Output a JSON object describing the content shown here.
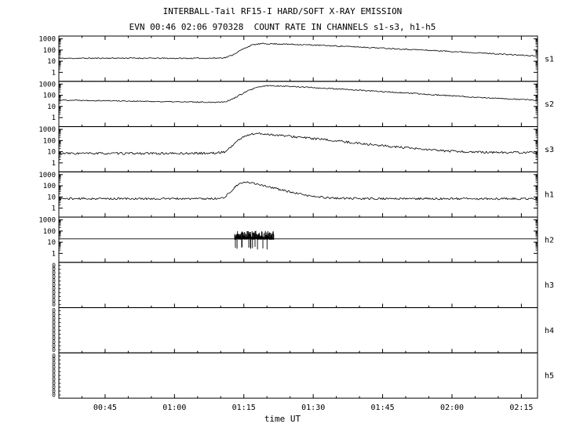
{
  "title": "INTERBALL-Tail RF15-I HARD/SOFT X-RAY EMISSION",
  "subtitle": "EVN 00:46 02:06 970328  COUNT RATE IN CHANNELS s1-s3, h1-h5",
  "chart_data": {
    "type": "line",
    "x_label": "time UT",
    "x_axis": "time of day (minutes after 00:00 UT)",
    "x_range_minutes": [
      35,
      138.5
    ],
    "x_ticks": [
      {
        "minute": 45,
        "label": "00:45"
      },
      {
        "minute": 60,
        "label": "01:00"
      },
      {
        "minute": 75,
        "label": "01:15"
      },
      {
        "minute": 90,
        "label": "01:30"
      },
      {
        "minute": 105,
        "label": "01:45"
      },
      {
        "minute": 120,
        "label": "02:00"
      },
      {
        "minute": 135,
        "label": "02:15"
      }
    ],
    "x_minor_tick_step_minutes": 5,
    "y_log_ticks": [
      {
        "value": 1000,
        "label": "1000"
      },
      {
        "value": 100,
        "label": "100"
      },
      {
        "value": 10,
        "label": "10"
      },
      {
        "value": 1,
        "label": "1"
      }
    ],
    "y_log_range_exp": [
      -0.8,
      3.25
    ],
    "empty_axis_char": "0",
    "empty_axis_repeat": 11,
    "panels": [
      {
        "id": "s1",
        "label": "s1",
        "axis": "log",
        "noise": 0.05,
        "seed": 11,
        "keypoints_time_value": [
          [
            35,
            18
          ],
          [
            50,
            19
          ],
          [
            62,
            18
          ],
          [
            69,
            19
          ],
          [
            71,
            21
          ],
          [
            72.5,
            35
          ],
          [
            74,
            80
          ],
          [
            75.5,
            170
          ],
          [
            77,
            300
          ],
          [
            79,
            370
          ],
          [
            82,
            355
          ],
          [
            88,
            300
          ],
          [
            95,
            230
          ],
          [
            102,
            170
          ],
          [
            110,
            118
          ],
          [
            118,
            82
          ],
          [
            126,
            55
          ],
          [
            132,
            40
          ],
          [
            138.5,
            29
          ]
        ]
      },
      {
        "id": "s2",
        "label": "s2",
        "axis": "log",
        "noise": 0.05,
        "seed": 22,
        "keypoints_time_value": [
          [
            35,
            38
          ],
          [
            45,
            33
          ],
          [
            55,
            28
          ],
          [
            63,
            25
          ],
          [
            69,
            24
          ],
          [
            71,
            27
          ],
          [
            72.5,
            45
          ],
          [
            74,
            100
          ],
          [
            76,
            260
          ],
          [
            78,
            520
          ],
          [
            80,
            720
          ],
          [
            83,
            680
          ],
          [
            88,
            540
          ],
          [
            95,
            370
          ],
          [
            102,
            250
          ],
          [
            110,
            160
          ],
          [
            118,
            100
          ],
          [
            126,
            64
          ],
          [
            132,
            47
          ],
          [
            138.5,
            36
          ]
        ]
      },
      {
        "id": "s3",
        "label": "s3",
        "axis": "log",
        "noise": 0.1,
        "seed": 33,
        "keypoints_time_value": [
          [
            35,
            7
          ],
          [
            50,
            7
          ],
          [
            62,
            7
          ],
          [
            69,
            7.5
          ],
          [
            71,
            10
          ],
          [
            72.5,
            35
          ],
          [
            74,
            130
          ],
          [
            76,
            330
          ],
          [
            77.5,
            420
          ],
          [
            80,
            370
          ],
          [
            84,
            260
          ],
          [
            90,
            150
          ],
          [
            97,
            75
          ],
          [
            104,
            38
          ],
          [
            111,
            20
          ],
          [
            118,
            12
          ],
          [
            125,
            9
          ],
          [
            138.5,
            8
          ]
        ]
      },
      {
        "id": "h1",
        "label": "h1",
        "axis": "log",
        "noise": 0.09,
        "seed": 44,
        "keypoints_time_value": [
          [
            35,
            7
          ],
          [
            55,
            7
          ],
          [
            68,
            7
          ],
          [
            70.5,
            8
          ],
          [
            72,
            25
          ],
          [
            73.5,
            110
          ],
          [
            75,
            200
          ],
          [
            76.5,
            190
          ],
          [
            78.5,
            130
          ],
          [
            81,
            70
          ],
          [
            84,
            35
          ],
          [
            87,
            18
          ],
          [
            90,
            11
          ],
          [
            94,
            8
          ],
          [
            100,
            7
          ],
          [
            138.5,
            7
          ]
        ]
      },
      {
        "id": "h2",
        "label": "h2",
        "axis": "log",
        "noise": 0,
        "seed": 55,
        "keypoints_time_value": [
          [
            35,
            20
          ],
          [
            138.5,
            20
          ]
        ],
        "burst": {
          "t_start": 73,
          "t_end": 81.5,
          "v_top_min": 25,
          "v_top_max": 110,
          "v_base": 18,
          "dropout_min": 2,
          "dropout_chance": 0.08
        }
      },
      {
        "id": "h3",
        "label": "h3",
        "axis": "zero",
        "noise": 0,
        "seed": 66,
        "keypoints_time_value": []
      },
      {
        "id": "h4",
        "label": "h4",
        "axis": "zero",
        "noise": 0,
        "seed": 77,
        "keypoints_time_value": []
      },
      {
        "id": "h5",
        "label": "h5",
        "axis": "zero",
        "noise": 0,
        "seed": 88,
        "keypoints_time_value": []
      }
    ]
  }
}
